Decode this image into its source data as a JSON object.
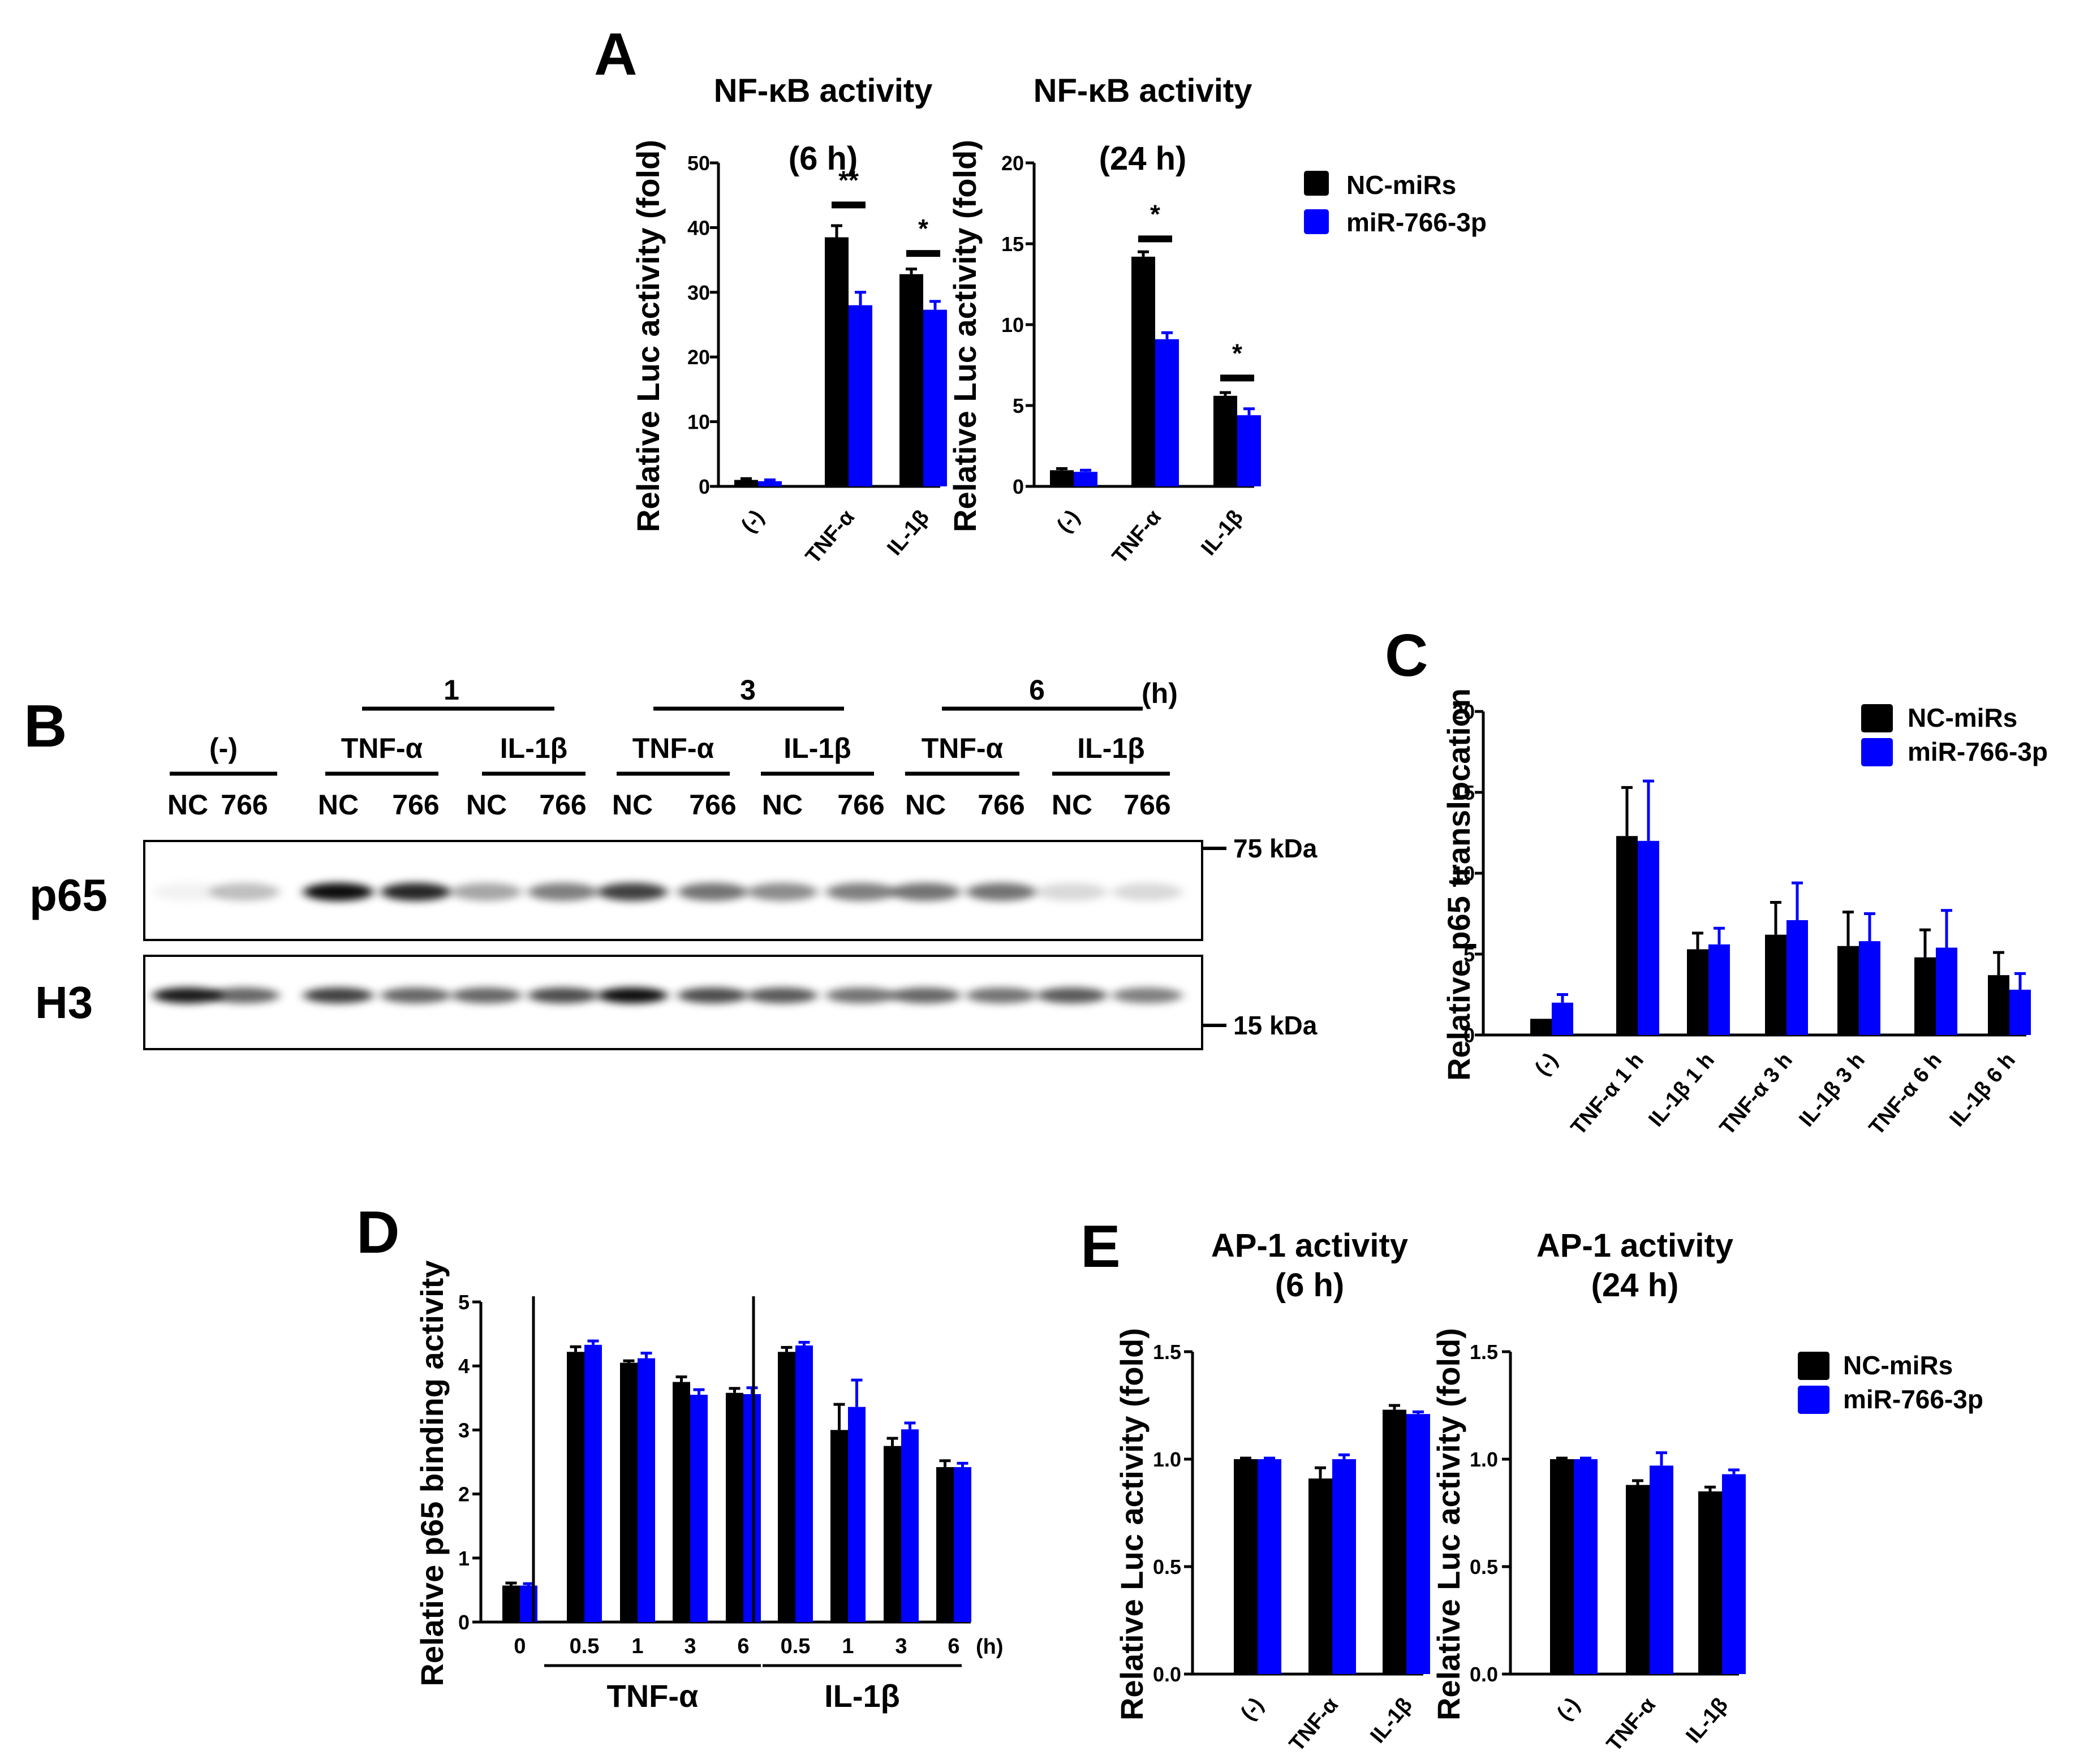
{
  "colors": {
    "nc": "#000000",
    "mir": "#0000ff",
    "axis": "#000000"
  },
  "panel_letters": {
    "A": "A",
    "B": "B",
    "C": "C",
    "D": "D",
    "E": "E"
  },
  "legend": {
    "nc": "NC-miRs",
    "mir": "miR-766-3p"
  },
  "chart_data": [
    {
      "id": "A1",
      "type": "bar",
      "title": [
        "NF-κB activity",
        "(6 h)"
      ],
      "ylabel": "Relative Luc activity (fold)",
      "xlabel": "",
      "ylim": [
        0,
        50
      ],
      "yticks": [
        0,
        10,
        20,
        30,
        40,
        50
      ],
      "ytick_labels": [
        "0",
        "10",
        "20",
        "30",
        "40",
        "50"
      ],
      "categories": [
        "(-)",
        "TNF-α",
        "IL-1β"
      ],
      "series": [
        {
          "name": "NC-miRs",
          "values": [
            1.0,
            38.5,
            32.8
          ],
          "errors": [
            0.2,
            1.8,
            0.8
          ]
        },
        {
          "name": "miR-766-3p",
          "values": [
            0.8,
            28.0,
            27.3
          ],
          "errors": [
            0.2,
            2.0,
            1.3
          ]
        }
      ],
      "significance": [
        {
          "category": "TNF-α",
          "label": "**",
          "at": 43.5
        },
        {
          "category": "IL-1β",
          "label": "*",
          "at": 36.0
        }
      ]
    },
    {
      "id": "A2",
      "type": "bar",
      "title": [
        "NF-κB activity",
        "(24 h)"
      ],
      "ylabel": "Relative Luc activity (fold)",
      "xlabel": "",
      "ylim": [
        0,
        20
      ],
      "yticks": [
        0,
        5,
        10,
        15,
        20
      ],
      "ytick_labels": [
        "0",
        "5",
        "10",
        "15",
        "20"
      ],
      "categories": [
        "(-)",
        "TNF-α",
        "IL-1β"
      ],
      "series": [
        {
          "name": "NC-miRs",
          "values": [
            1.0,
            14.2,
            5.6
          ],
          "errors": [
            0.1,
            0.3,
            0.2
          ]
        },
        {
          "name": "miR-766-3p",
          "values": [
            0.9,
            9.1,
            4.4
          ],
          "errors": [
            0.1,
            0.4,
            0.4
          ]
        }
      ],
      "significance": [
        {
          "category": "TNF-α",
          "label": "*",
          "at": 15.3
        },
        {
          "category": "IL-1β",
          "label": "*",
          "at": 6.7
        }
      ]
    },
    {
      "id": "C",
      "type": "bar",
      "title": [
        ""
      ],
      "ylabel": "Relative p65 translocation",
      "xlabel": "",
      "ylim": [
        0,
        20
      ],
      "yticks": [
        0,
        5,
        10,
        15,
        20
      ],
      "ytick_labels": [
        "0",
        "5",
        "10",
        "15",
        "20"
      ],
      "categories": [
        "(-)",
        "TNF-α 1 h",
        "IL-1β 1 h",
        "TNF-α 3 h",
        "IL-1β 3 h",
        "TNF-α 6 h",
        "IL-1β 6 h"
      ],
      "series": [
        {
          "name": "NC-miRs",
          "values": [
            1.0,
            12.3,
            5.3,
            6.2,
            5.5,
            4.8,
            3.7
          ],
          "errors": [
            0,
            3.0,
            1.0,
            2.0,
            2.1,
            1.7,
            1.4
          ]
        },
        {
          "name": "miR-766-3p",
          "values": [
            2.0,
            12.0,
            5.6,
            7.1,
            5.8,
            5.4,
            2.8
          ],
          "errors": [
            0.5,
            3.7,
            1.0,
            2.3,
            1.7,
            2.3,
            1.0
          ]
        }
      ]
    },
    {
      "id": "D",
      "type": "bar",
      "title": [
        ""
      ],
      "ylabel": "Relative p65 binding activity",
      "xlabel": "(h)",
      "ylim": [
        0,
        5
      ],
      "yticks": [
        0,
        1,
        2,
        3,
        4,
        5
      ],
      "ytick_labels": [
        "0",
        "1",
        "2",
        "3",
        "4",
        "5"
      ],
      "categories": [
        "0",
        "0.5",
        "1",
        "3",
        "6",
        "0.5",
        "1",
        "3",
        "6"
      ],
      "groups": [
        {
          "label": "TNF-α",
          "from": 1,
          "to": 4
        },
        {
          "label": "IL-1β",
          "from": 5,
          "to": 8
        }
      ],
      "series": [
        {
          "name": "NC-miRs",
          "values": [
            0.57,
            4.22,
            4.05,
            3.75,
            3.58,
            4.22,
            3.0,
            2.75,
            2.42
          ],
          "errors": [
            0.04,
            0.08,
            0.03,
            0.08,
            0.07,
            0.07,
            0.4,
            0.12,
            0.1
          ]
        },
        {
          "name": "miR-766-3p",
          "values": [
            0.57,
            4.33,
            4.12,
            3.55,
            3.56,
            4.32,
            3.36,
            3.01,
            2.42
          ],
          "errors": [
            0.03,
            0.06,
            0.08,
            0.08,
            0.1,
            0.05,
            0.42,
            0.1,
            0.06
          ]
        }
      ]
    },
    {
      "id": "E1",
      "type": "bar",
      "title": [
        "AP-1 activity",
        "(6 h)"
      ],
      "ylabel": "Relative Luc activity (fold)",
      "xlabel": "",
      "ylim": [
        0,
        1.5
      ],
      "yticks": [
        0,
        0.5,
        1.0,
        1.5
      ],
      "ytick_labels": [
        "0.0",
        "0.5",
        "1.0",
        "1.5"
      ],
      "categories": [
        "(-)",
        "TNF-α",
        "IL-1β"
      ],
      "series": [
        {
          "name": "NC-miRs",
          "values": [
            1.0,
            0.91,
            1.23
          ],
          "errors": [
            0.005,
            0.05,
            0.02
          ]
        },
        {
          "name": "miR-766-3p",
          "values": [
            1.0,
            1.0,
            1.21
          ],
          "errors": [
            0.005,
            0.02,
            0.01
          ]
        }
      ]
    },
    {
      "id": "E2",
      "type": "bar",
      "title": [
        "AP-1 activity",
        "(24 h)"
      ],
      "ylabel": "Relative Luc activity (fold)",
      "xlabel": "",
      "ylim": [
        0,
        1.5
      ],
      "yticks": [
        0,
        0.5,
        1.0,
        1.5
      ],
      "ytick_labels": [
        "0.0",
        "0.5",
        "1.0",
        "1.5"
      ],
      "categories": [
        "(-)",
        "TNF-α",
        "IL-1β"
      ],
      "series": [
        {
          "name": "NC-miRs",
          "values": [
            1.0,
            0.88,
            0.85
          ],
          "errors": [
            0.005,
            0.02,
            0.02
          ]
        },
        {
          "name": "miR-766-3p",
          "values": [
            1.0,
            0.97,
            0.93
          ],
          "errors": [
            0.005,
            0.06,
            0.02
          ]
        }
      ]
    }
  ],
  "blot": {
    "time_unit": "(h)",
    "time_labels": [
      "1",
      "3",
      "6"
    ],
    "treatments": [
      "(-)",
      "TNF-α",
      "IL-1β",
      "TNF-α",
      "IL-1β",
      "TNF-α",
      "IL-1β"
    ],
    "lanes": [
      "NC",
      "766",
      "NC",
      "766",
      "NC",
      "766",
      "NC",
      "766",
      "NC",
      "766",
      "NC",
      "766",
      "NC",
      "766"
    ],
    "bands": [
      {
        "name": "p65",
        "marker": "75 kDa",
        "intensity": [
          0.05,
          0.25,
          0.95,
          0.85,
          0.35,
          0.5,
          0.75,
          0.55,
          0.45,
          0.5,
          0.55,
          0.55,
          0.15,
          0.15
        ]
      },
      {
        "name": "H3",
        "marker": "15 kDa",
        "intensity": [
          0.9,
          0.6,
          0.75,
          0.6,
          0.6,
          0.7,
          0.95,
          0.7,
          0.65,
          0.55,
          0.6,
          0.55,
          0.65,
          0.5
        ]
      }
    ]
  }
}
